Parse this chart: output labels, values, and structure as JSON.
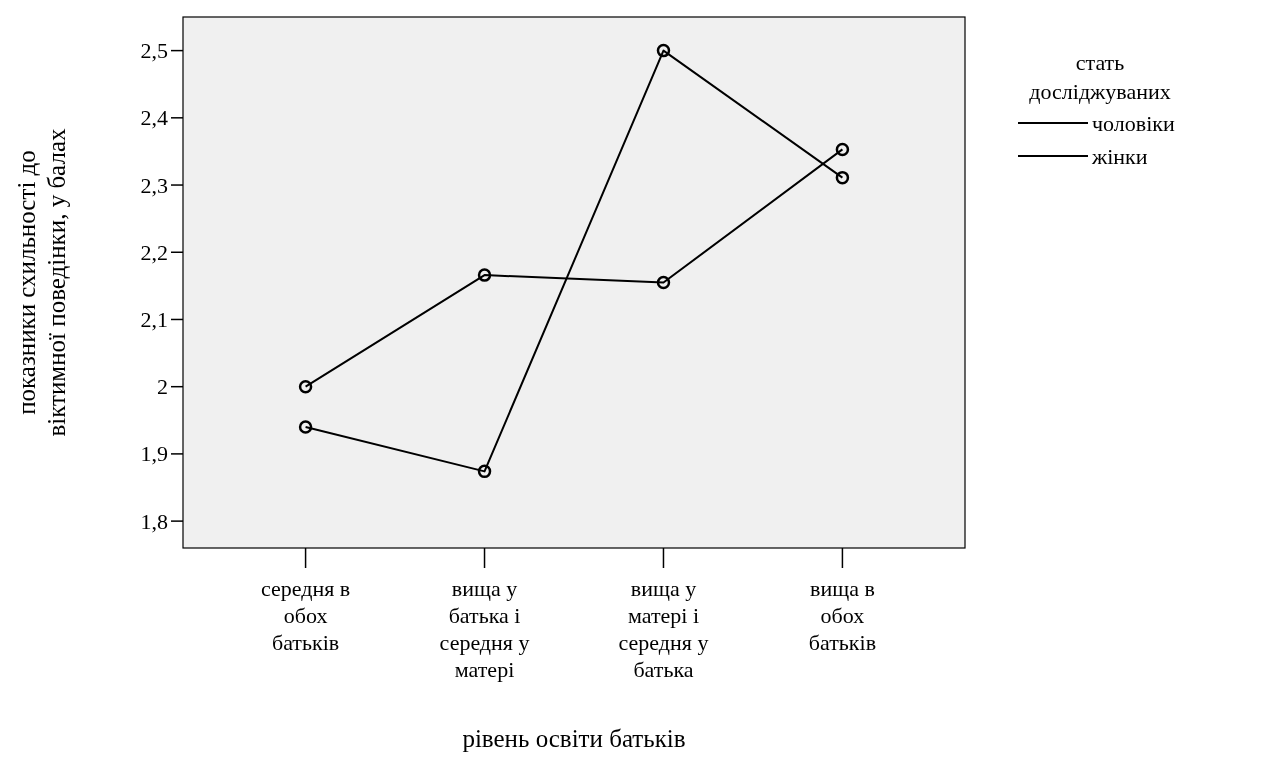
{
  "chart_data": {
    "type": "line",
    "xlabel": "рівень освіти батьків",
    "ylabel": "показники схильності до\nвіктимної поведінки, у балах",
    "legend_title": "стать\nдосліджуваних",
    "categories": [
      "середня в\nобох\nбатьків",
      "вища у\nбатька і\nсередня у\nматері",
      "вища у\nматері і\nсередня у\nбатька",
      "вища в\nобох\nбатьків"
    ],
    "series": [
      {
        "name": "чоловіки",
        "color": "#000000",
        "values": [
          2.0,
          2.166,
          2.155,
          2.353
        ]
      },
      {
        "name": "жінки",
        "color": "#000000",
        "values": [
          1.94,
          1.874,
          2.5,
          2.311
        ]
      }
    ],
    "ylim": [
      1.76,
      2.55
    ],
    "yticks": [
      {
        "value": 1.8,
        "label": "1,8"
      },
      {
        "value": 1.9,
        "label": "1,9"
      },
      {
        "value": 2,
        "label": "2"
      },
      {
        "value": 2.1,
        "label": "2,1"
      },
      {
        "value": 2.2,
        "label": "2,2"
      },
      {
        "value": 2.3,
        "label": "2,3"
      },
      {
        "value": 2.4,
        "label": "2,4"
      },
      {
        "value": 2.5,
        "label": "2,5"
      }
    ],
    "grid": false,
    "legend": "right",
    "marker": "circle",
    "line_style": "solid"
  }
}
